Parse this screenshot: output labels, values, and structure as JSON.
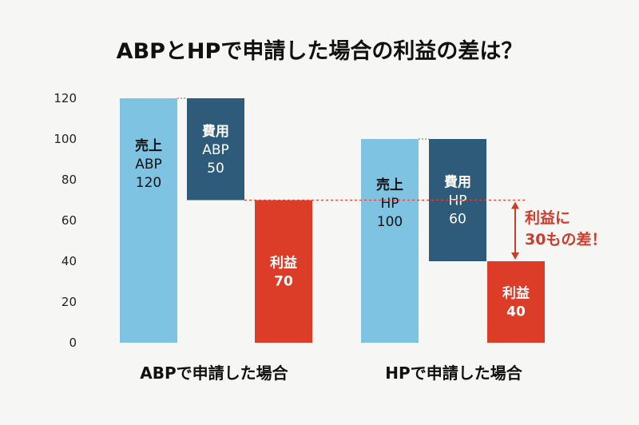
{
  "chart_data": {
    "type": "bar",
    "title": "ABPとHPで申請した場合の利益の差は？",
    "ylim": [
      0,
      120
    ],
    "y_ticks": [
      0,
      20,
      40,
      60,
      80,
      100,
      120
    ],
    "grid": false,
    "colors": {
      "sales": "#7ec3e2",
      "cost": "#2e5b7a",
      "profit": "#dc3d28",
      "annotation": "#cc3b2b",
      "dotted_line": "#d04a3a"
    },
    "groups": [
      {
        "label": "ABPで申請した場合",
        "bars": [
          {
            "kind": "sales",
            "heading": "売上",
            "sub": "ABP",
            "base": 0,
            "top": 120,
            "value": "120"
          },
          {
            "kind": "cost",
            "heading": "費用",
            "sub": "ABP",
            "base": 70,
            "top": 120,
            "value": "50"
          },
          {
            "kind": "profit",
            "heading": "利益",
            "sub": "",
            "base": 0,
            "top": 70,
            "value": "70"
          }
        ]
      },
      {
        "label": "HPで申請した場合",
        "bars": [
          {
            "kind": "sales",
            "heading": "売上",
            "sub": "HP",
            "base": 0,
            "top": 100,
            "value": "100"
          },
          {
            "kind": "cost",
            "heading": "費用",
            "sub": "HP",
            "base": 40,
            "top": 100,
            "value": "60"
          },
          {
            "kind": "profit",
            "heading": "利益",
            "sub": "",
            "base": 0,
            "top": 40,
            "value": "40"
          }
        ]
      }
    ],
    "annotation": {
      "lines": [
        "利益に",
        "30もの差！"
      ],
      "from": 40,
      "to": 70
    }
  }
}
